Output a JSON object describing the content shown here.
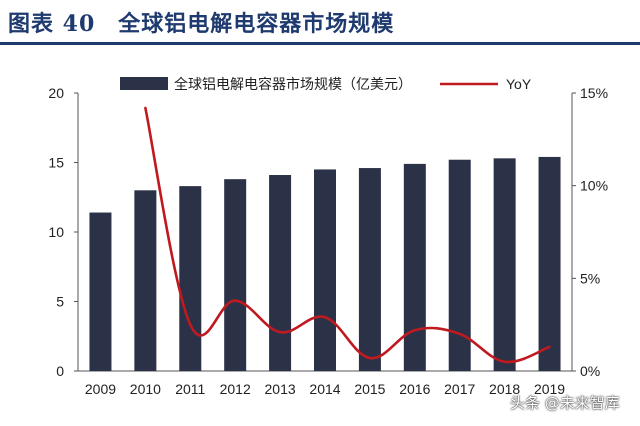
{
  "figure": {
    "title": "图表 40　全球铝电解电容器市场规模",
    "watermark": "头条 @未来智库"
  },
  "chart_data": {
    "type": "bar",
    "categories": [
      "2009",
      "2010",
      "2011",
      "2012",
      "2013",
      "2014",
      "2015",
      "2016",
      "2017",
      "2018",
      "2019"
    ],
    "series": [
      {
        "name": "全球铝电解电容器市场规模（亿美元）",
        "kind": "bar",
        "axis": "left",
        "color": "#2b3247",
        "values": [
          11.4,
          13.0,
          13.3,
          13.8,
          14.1,
          14.5,
          14.6,
          14.9,
          15.2,
          15.3,
          15.4
        ]
      },
      {
        "name": "YoY",
        "kind": "line",
        "axis": "right",
        "color": "#c0191f",
        "values": [
          null,
          14.2,
          2.5,
          3.8,
          2.1,
          2.9,
          0.7,
          2.2,
          2.0,
          0.5,
          1.3
        ]
      }
    ],
    "y_left": {
      "min": 0,
      "max": 20,
      "ticks": [
        "0",
        "5",
        "10",
        "15",
        "20"
      ]
    },
    "y_right": {
      "min": 0,
      "max": 15,
      "ticks": [
        "0%",
        "5%",
        "10%",
        "15%"
      ]
    },
    "legend_position": "top",
    "grid": false
  }
}
